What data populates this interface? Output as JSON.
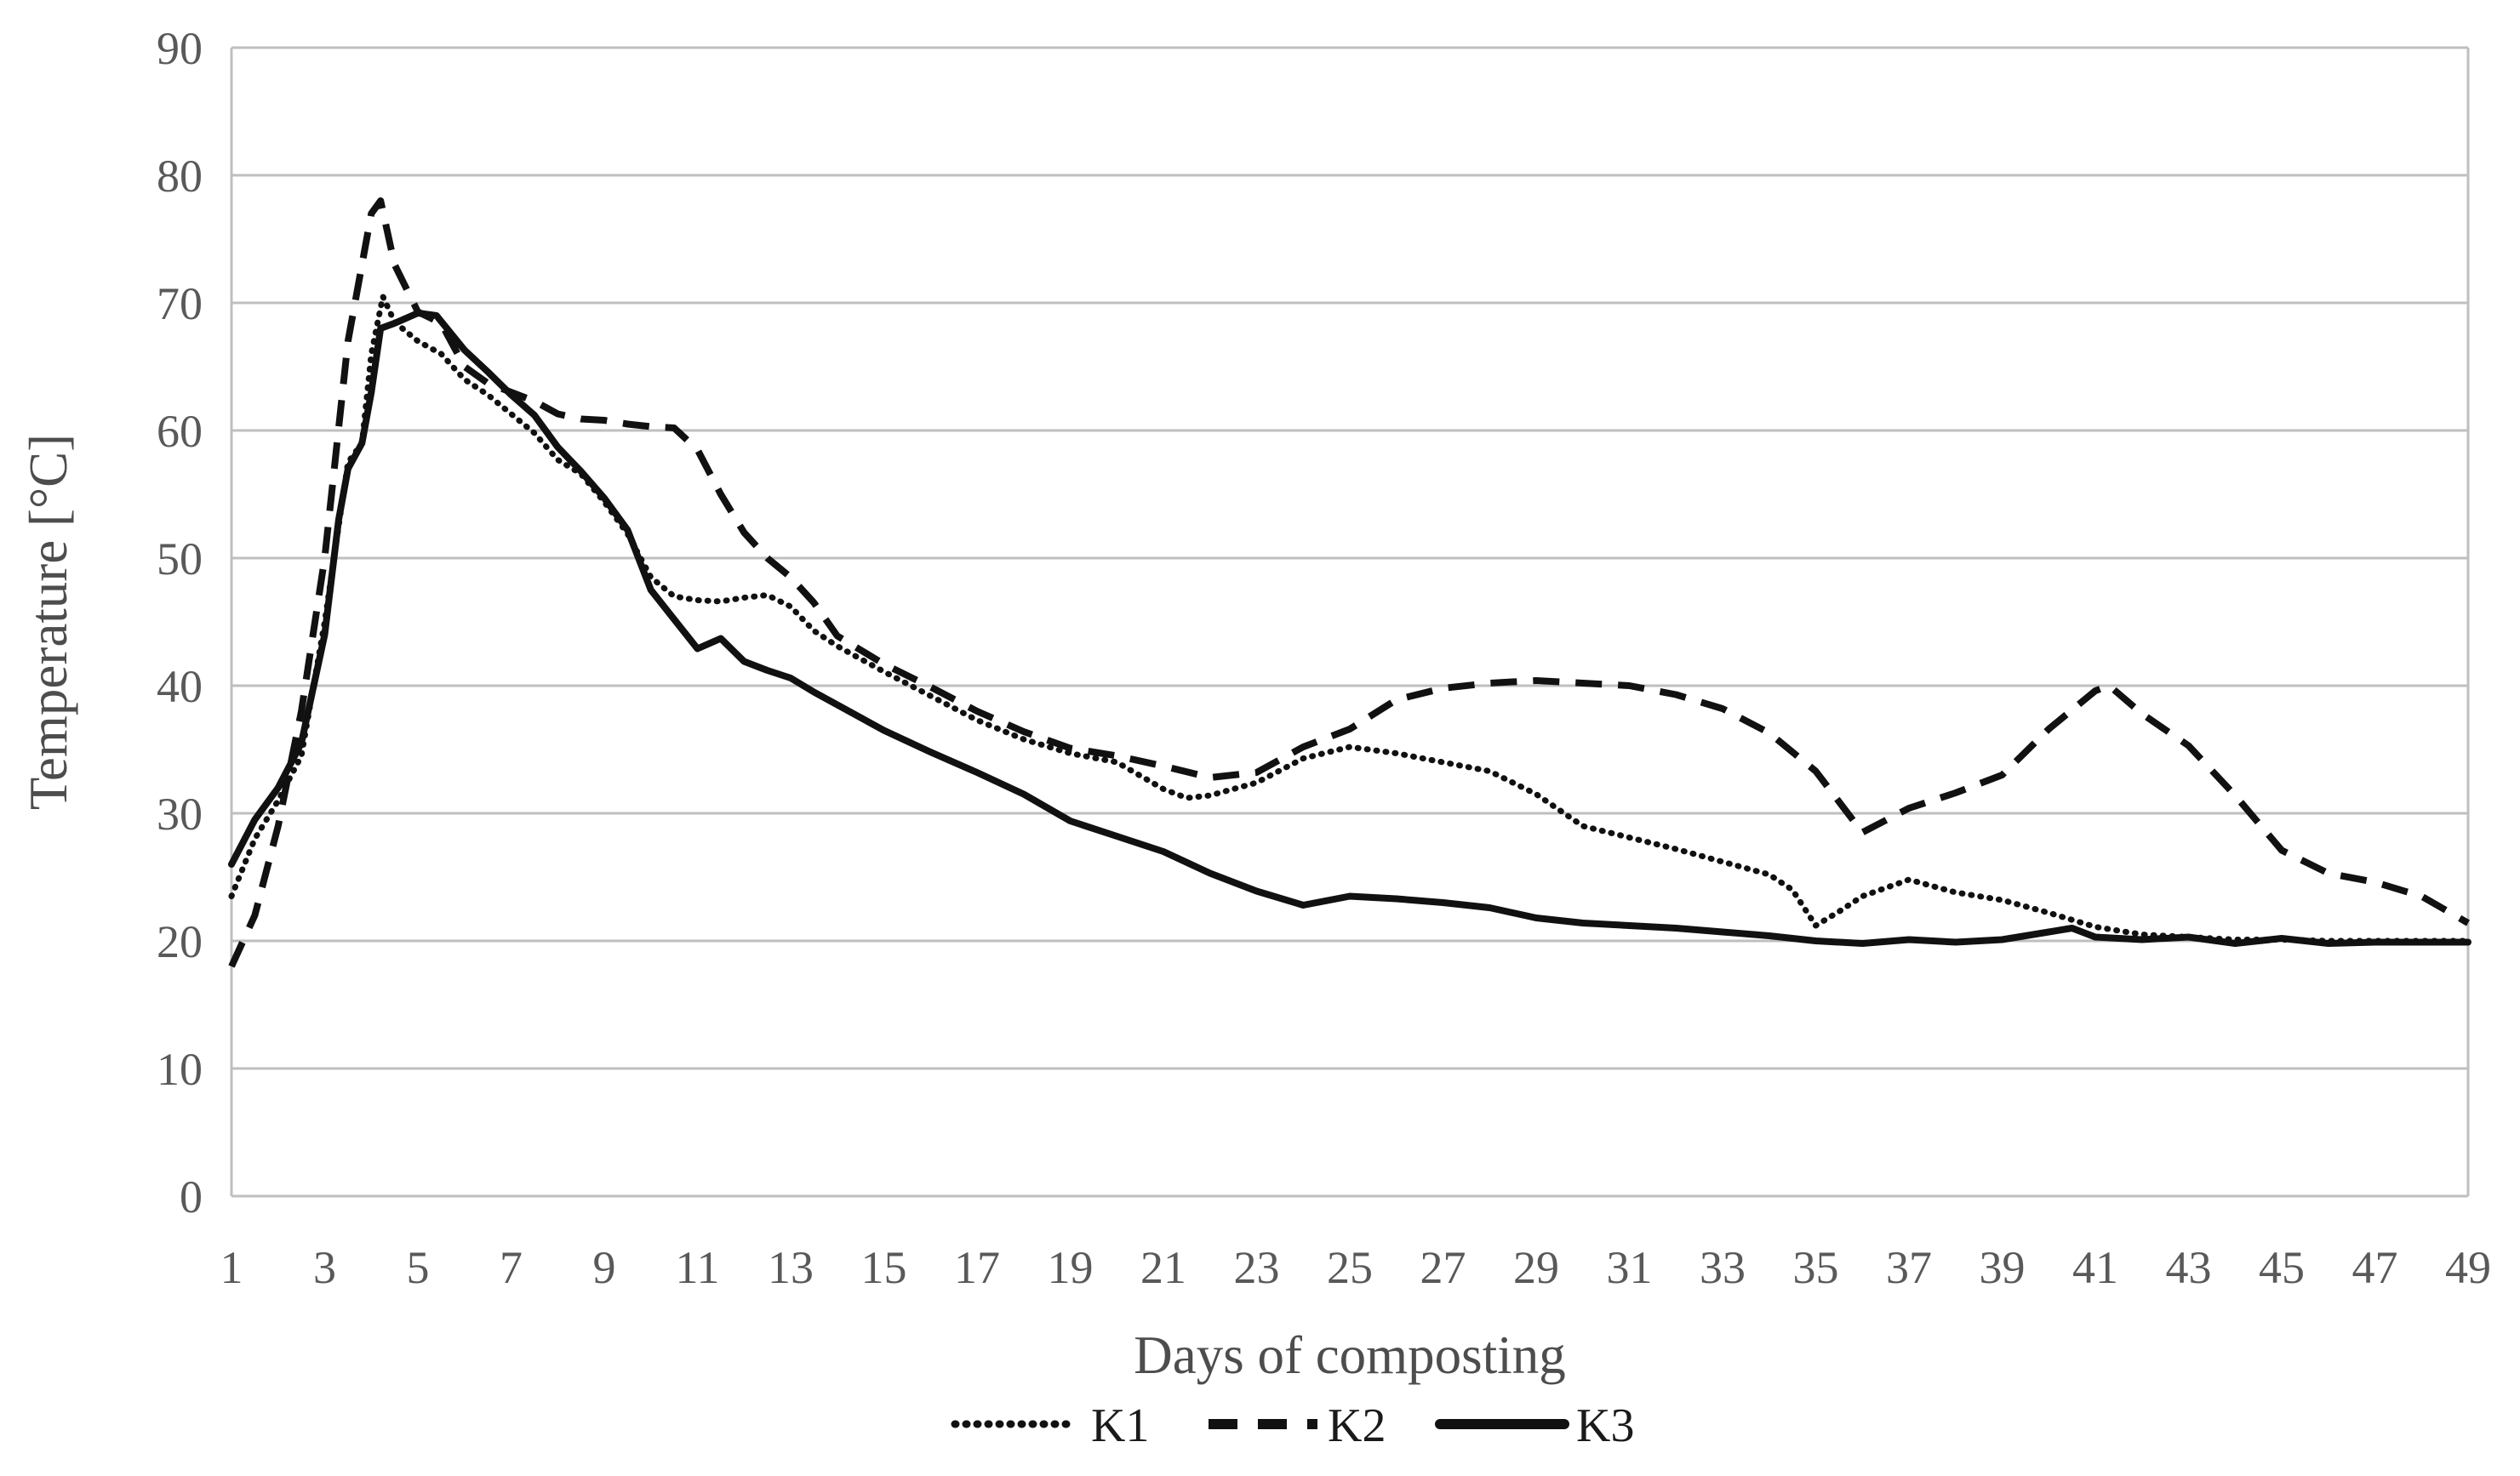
{
  "colors": {
    "line": "#111111",
    "grid": "#bfbfbf",
    "tick_text": "#595959",
    "background": "#ffffff"
  },
  "chart_data": {
    "type": "line",
    "title": "",
    "xlabel": "Days of composting",
    "ylabel": "Temperature [°C]",
    "xlim": [
      1,
      49
    ],
    "ylim": [
      0,
      90
    ],
    "x_ticks": [
      1,
      3,
      5,
      7,
      9,
      11,
      13,
      15,
      17,
      19,
      21,
      23,
      25,
      27,
      29,
      31,
      33,
      35,
      37,
      39,
      41,
      43,
      45,
      47,
      49
    ],
    "y_ticks": [
      0,
      10,
      20,
      30,
      40,
      50,
      60,
      70,
      80,
      90
    ],
    "grid": "horizontal",
    "legend_position": "bottom-center",
    "series": [
      {
        "name": "K1",
        "style": "dotted",
        "points": [
          [
            1,
            23.5
          ],
          [
            1.5,
            28
          ],
          [
            2,
            31
          ],
          [
            2.5,
            34.5
          ],
          [
            3,
            45
          ],
          [
            3.5,
            57.5
          ],
          [
            3.8,
            59
          ],
          [
            4,
            66
          ],
          [
            4.25,
            70.5
          ],
          [
            4.5,
            68.5
          ],
          [
            5,
            67
          ],
          [
            5.5,
            66
          ],
          [
            6,
            64
          ],
          [
            6.5,
            62.8
          ],
          [
            7,
            61.3
          ],
          [
            7.5,
            59.8
          ],
          [
            8,
            57.7
          ],
          [
            8.5,
            56.6
          ],
          [
            9,
            54.4
          ],
          [
            9.5,
            51.9
          ],
          [
            10,
            48.5
          ],
          [
            10.5,
            47
          ],
          [
            11,
            46.7
          ],
          [
            11.5,
            46.6
          ],
          [
            12,
            46.9
          ],
          [
            12.5,
            47.1
          ],
          [
            13,
            46.2
          ],
          [
            13.5,
            44.3
          ],
          [
            14,
            43.1
          ],
          [
            15,
            41.1
          ],
          [
            16,
            39.2
          ],
          [
            17,
            37.3
          ],
          [
            18,
            35.8
          ],
          [
            19,
            34.7
          ],
          [
            20,
            34
          ],
          [
            21,
            31.9
          ],
          [
            21.5,
            31.2
          ],
          [
            22,
            31.4
          ],
          [
            23,
            32.4
          ],
          [
            24,
            34.3
          ],
          [
            25,
            35.2
          ],
          [
            26,
            34.7
          ],
          [
            27,
            34
          ],
          [
            28,
            33.3
          ],
          [
            29,
            31.5
          ],
          [
            30,
            29
          ],
          [
            31,
            28.1
          ],
          [
            32,
            27.2
          ],
          [
            33,
            26.2
          ],
          [
            34,
            25.2
          ],
          [
            34.5,
            24
          ],
          [
            35,
            21.2
          ],
          [
            35.5,
            22.3
          ],
          [
            36,
            23.5
          ],
          [
            37,
            24.8
          ],
          [
            38,
            23.8
          ],
          [
            39,
            23.2
          ],
          [
            40,
            22.2
          ],
          [
            41,
            21.1
          ],
          [
            42,
            20.5
          ],
          [
            43,
            20.3
          ],
          [
            44,
            20.1
          ],
          [
            45,
            20.1
          ],
          [
            46,
            20
          ],
          [
            47,
            20
          ],
          [
            48,
            20
          ],
          [
            49,
            20
          ]
        ]
      },
      {
        "name": "K2",
        "style": "dashed",
        "points": [
          [
            1,
            18
          ],
          [
            1.5,
            22
          ],
          [
            2,
            29
          ],
          [
            2.5,
            38
          ],
          [
            3,
            50
          ],
          [
            3.5,
            67
          ],
          [
            4,
            77
          ],
          [
            4.2,
            78
          ],
          [
            4.5,
            73
          ],
          [
            5,
            69.3
          ],
          [
            5.5,
            68.4
          ],
          [
            6,
            65
          ],
          [
            6.5,
            63.7
          ],
          [
            7,
            63
          ],
          [
            7.5,
            62.3
          ],
          [
            8,
            61.3
          ],
          [
            8.5,
            60.9
          ],
          [
            9,
            60.8
          ],
          [
            9.5,
            60.5
          ],
          [
            10,
            60.3
          ],
          [
            10.5,
            60.2
          ],
          [
            11,
            58.5
          ],
          [
            11.5,
            55
          ],
          [
            12,
            52
          ],
          [
            12.5,
            50
          ],
          [
            13,
            48.5
          ],
          [
            13.5,
            46.5
          ],
          [
            14,
            43.9
          ],
          [
            15,
            41.7
          ],
          [
            16,
            39.9
          ],
          [
            17,
            38
          ],
          [
            18,
            36.4
          ],
          [
            19,
            35.1
          ],
          [
            20,
            34.5
          ],
          [
            21,
            33.7
          ],
          [
            22,
            32.8
          ],
          [
            23,
            33.2
          ],
          [
            24,
            35.2
          ],
          [
            25,
            36.6
          ],
          [
            26,
            38.9
          ],
          [
            27,
            39.8
          ],
          [
            28,
            40.2
          ],
          [
            29,
            40.4
          ],
          [
            30,
            40.2
          ],
          [
            31,
            40
          ],
          [
            32,
            39.3
          ],
          [
            33,
            38.2
          ],
          [
            34,
            36.3
          ],
          [
            35,
            33.3
          ],
          [
            36,
            28.5
          ],
          [
            37,
            30.4
          ],
          [
            38,
            31.6
          ],
          [
            39,
            33
          ],
          [
            40,
            36.6
          ],
          [
            41,
            39.6
          ],
          [
            41.3,
            40
          ],
          [
            42,
            37.8
          ],
          [
            43,
            35.3
          ],
          [
            44,
            31.4
          ],
          [
            45,
            27.1
          ],
          [
            46,
            25.3
          ],
          [
            47,
            24.6
          ],
          [
            48,
            23.5
          ],
          [
            49,
            21.4
          ]
        ]
      },
      {
        "name": "K3",
        "style": "solid",
        "points": [
          [
            1,
            26
          ],
          [
            1.5,
            29.5
          ],
          [
            2,
            32
          ],
          [
            2.5,
            35.5
          ],
          [
            3,
            44
          ],
          [
            3.3,
            53
          ],
          [
            3.5,
            57
          ],
          [
            3.8,
            59
          ],
          [
            4,
            63
          ],
          [
            4.2,
            68
          ],
          [
            4.5,
            68.4
          ],
          [
            5,
            69.2
          ],
          [
            5.4,
            69
          ],
          [
            6,
            66.3
          ],
          [
            6.5,
            64.6
          ],
          [
            7,
            62.8
          ],
          [
            7.5,
            61.2
          ],
          [
            8,
            58.7
          ],
          [
            8.5,
            56.8
          ],
          [
            9,
            54.7
          ],
          [
            9.5,
            52.2
          ],
          [
            10,
            47.5
          ],
          [
            10.5,
            45.2
          ],
          [
            11,
            42.9
          ],
          [
            11.5,
            43.7
          ],
          [
            12,
            41.9
          ],
          [
            12.5,
            41.2
          ],
          [
            13,
            40.6
          ],
          [
            13.5,
            39.5
          ],
          [
            14,
            38.5
          ],
          [
            15,
            36.5
          ],
          [
            16,
            34.8
          ],
          [
            17,
            33.2
          ],
          [
            18,
            31.5
          ],
          [
            19,
            29.4
          ],
          [
            20,
            28.2
          ],
          [
            21,
            27
          ],
          [
            22,
            25.3
          ],
          [
            23,
            23.9
          ],
          [
            24,
            22.8
          ],
          [
            25,
            23.5
          ],
          [
            26,
            23.3
          ],
          [
            27,
            23
          ],
          [
            28,
            22.6
          ],
          [
            29,
            21.8
          ],
          [
            30,
            21.4
          ],
          [
            31,
            21.2
          ],
          [
            32,
            21
          ],
          [
            33,
            20.7
          ],
          [
            34,
            20.4
          ],
          [
            35,
            20
          ],
          [
            36,
            19.8
          ],
          [
            37,
            20.1
          ],
          [
            38,
            19.9
          ],
          [
            39,
            20.1
          ],
          [
            40,
            20.7
          ],
          [
            40.5,
            21
          ],
          [
            41,
            20.3
          ],
          [
            42,
            20.1
          ],
          [
            43,
            20.3
          ],
          [
            44,
            19.8
          ],
          [
            45,
            20.2
          ],
          [
            46,
            19.8
          ],
          [
            47,
            19.9
          ],
          [
            48,
            19.9
          ],
          [
            49,
            19.9
          ]
        ]
      }
    ]
  }
}
